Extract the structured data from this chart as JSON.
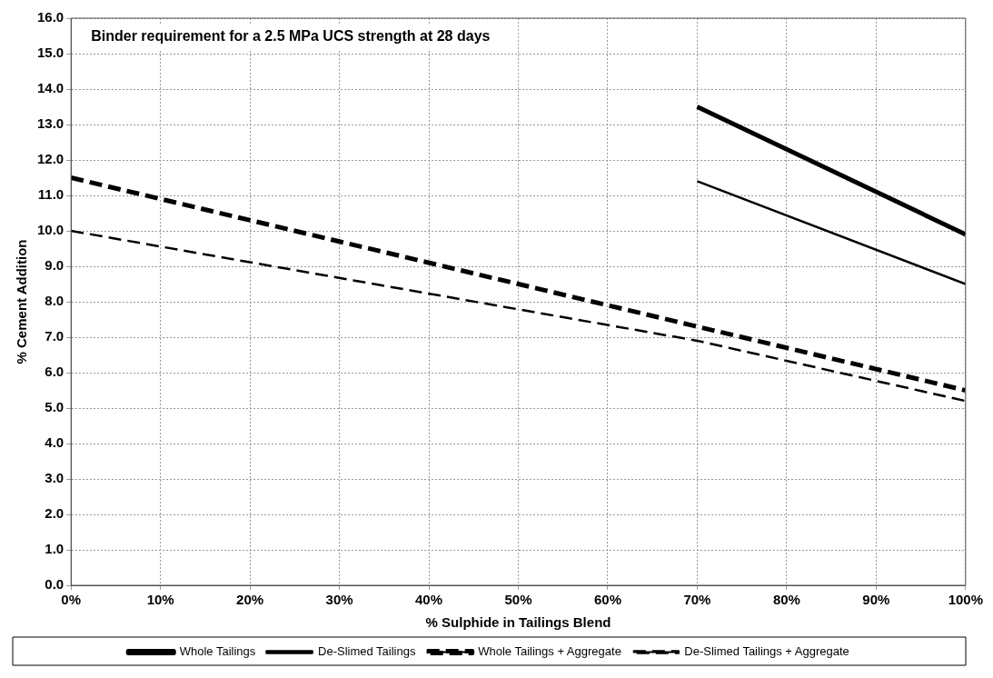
{
  "chart_data": {
    "type": "line",
    "title": "Binder requirement for a 2.5 MPa UCS strength at 28 days",
    "xlabel": "% Sulphide in Tailings Blend",
    "ylabel": "% Cement Addition",
    "xlim": [
      0,
      100
    ],
    "xticks": [
      {
        "value": 0,
        "label": "0%"
      },
      {
        "value": 10,
        "label": "10%"
      },
      {
        "value": 20,
        "label": "20%"
      },
      {
        "value": 30,
        "label": "30%"
      },
      {
        "value": 40,
        "label": "40%"
      },
      {
        "value": 50,
        "label": "50%"
      },
      {
        "value": 60,
        "label": "60%"
      },
      {
        "value": 70,
        "label": "70%"
      },
      {
        "value": 80,
        "label": "80%"
      },
      {
        "value": 90,
        "label": "90%"
      },
      {
        "value": 100,
        "label": "100%"
      }
    ],
    "ylim": [
      0,
      16
    ],
    "yticks": [
      {
        "value": 0,
        "label": "0.0"
      },
      {
        "value": 1,
        "label": "1.0"
      },
      {
        "value": 2,
        "label": "2.0"
      },
      {
        "value": 3,
        "label": "3.0"
      },
      {
        "value": 4,
        "label": "4.0"
      },
      {
        "value": 5,
        "label": "5.0"
      },
      {
        "value": 6,
        "label": "6.0"
      },
      {
        "value": 7,
        "label": "7.0"
      },
      {
        "value": 8,
        "label": "8.0"
      },
      {
        "value": 9,
        "label": "9.0"
      },
      {
        "value": 10,
        "label": "10.0"
      },
      {
        "value": 11,
        "label": "11.0"
      },
      {
        "value": 12,
        "label": "12.0"
      },
      {
        "value": 13,
        "label": "13.0"
      },
      {
        "value": 14,
        "label": "14.0"
      },
      {
        "value": 15,
        "label": "15.0"
      },
      {
        "value": 16,
        "label": "16.0"
      }
    ],
    "grid": true,
    "legend": "bottom",
    "marker": "none",
    "series": [
      {
        "name": "Whole Tailings",
        "color": "#000000",
        "line_style": "solid",
        "x": [
          70,
          100
        ],
        "values": [
          13.5,
          9.9
        ]
      },
      {
        "name": "De-Slimed Tailings",
        "color": "#000000",
        "line_style": "solid",
        "x": [
          70,
          100
        ],
        "values": [
          11.4,
          8.5
        ]
      },
      {
        "name": "Whole Tailings + Aggregate",
        "color": "#000000",
        "line_style": "dashed",
        "x": [
          0,
          100
        ],
        "values": [
          11.5,
          5.5
        ]
      },
      {
        "name": "De-Slimed Tailings + Aggregate",
        "color": "#000000",
        "line_style": "dashed",
        "x": [
          0,
          70,
          100
        ],
        "values": [
          10.0,
          6.9,
          5.2
        ]
      }
    ]
  }
}
